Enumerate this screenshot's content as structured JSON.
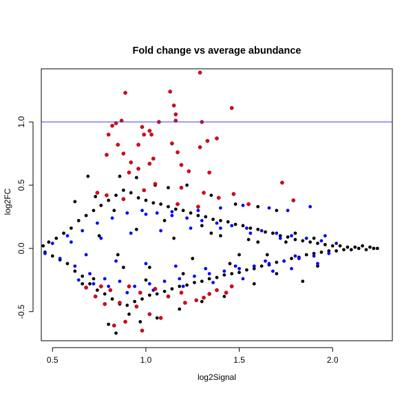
{
  "chart_data": {
    "type": "scatter",
    "title": "Fold change vs average abundance",
    "xlabel": "log2Signal",
    "ylabel": "log2FC",
    "xlim": [
      0.44,
      2.32
    ],
    "ylim": [
      -0.73,
      1.42
    ],
    "x_ticks": [
      0.5,
      1.0,
      1.5,
      2.0
    ],
    "x_tick_labels": [
      "0.5",
      "1.0",
      "1.5",
      "2.0"
    ],
    "y_ticks": [
      -0.5,
      0.0,
      0.5,
      1.0
    ],
    "y_tick_labels": [
      "-0.5",
      "0.0",
      "0.5",
      "1.0"
    ],
    "reference_line": {
      "y": 1.0,
      "color": "#3b3bff"
    },
    "colors": {
      "black_group": "#000000",
      "blue_group": "#0000ff",
      "red_group": "#e0001b",
      "red_outline": "#7a0000"
    },
    "series": [
      {
        "color_key": "black_group",
        "points": [
          [
            0.45,
            0.02
          ],
          [
            0.46,
            -0.03
          ],
          [
            0.48,
            0.05
          ],
          [
            0.5,
            -0.06
          ],
          [
            0.52,
            0.08
          ],
          [
            0.54,
            -0.09
          ],
          [
            0.56,
            0.12
          ],
          [
            0.58,
            -0.12
          ],
          [
            0.6,
            0.16
          ],
          [
            0.62,
            -0.18
          ],
          [
            0.64,
            0.22
          ],
          [
            0.66,
            -0.22
          ],
          [
            0.68,
            0.26
          ],
          [
            0.7,
            -0.28
          ],
          [
            0.72,
            0.3
          ],
          [
            0.74,
            -0.33
          ],
          [
            0.76,
            0.34
          ],
          [
            0.78,
            -0.36
          ],
          [
            0.8,
            0.38
          ],
          [
            0.82,
            -0.4
          ],
          [
            0.84,
            0.42
          ],
          [
            0.86,
            -0.44
          ],
          [
            0.88,
            0.46
          ],
          [
            0.9,
            -0.45
          ],
          [
            0.92,
            0.44
          ],
          [
            0.94,
            -0.42
          ],
          [
            0.96,
            0.4
          ],
          [
            0.98,
            -0.4
          ],
          [
            1.0,
            0.38
          ],
          [
            1.02,
            -0.37
          ],
          [
            1.04,
            0.36
          ],
          [
            1.06,
            -0.36
          ],
          [
            1.08,
            0.35
          ],
          [
            1.1,
            -0.34
          ],
          [
            1.12,
            0.33
          ],
          [
            1.14,
            -0.32
          ],
          [
            1.16,
            0.31
          ],
          [
            1.18,
            -0.3
          ],
          [
            1.2,
            0.3
          ],
          [
            1.22,
            -0.29
          ],
          [
            1.24,
            0.28
          ],
          [
            1.26,
            -0.27
          ],
          [
            1.28,
            0.26
          ],
          [
            1.3,
            -0.26
          ],
          [
            1.32,
            0.25
          ],
          [
            1.34,
            -0.24
          ],
          [
            1.36,
            0.23
          ],
          [
            1.38,
            -0.23
          ],
          [
            1.4,
            0.22
          ],
          [
            1.42,
            -0.21
          ],
          [
            1.44,
            0.21
          ],
          [
            1.46,
            -0.2
          ],
          [
            1.48,
            0.19
          ],
          [
            1.5,
            -0.19
          ],
          [
            1.52,
            0.18
          ],
          [
            1.54,
            -0.17
          ],
          [
            1.56,
            0.16
          ],
          [
            1.58,
            -0.16
          ],
          [
            1.6,
            0.15
          ],
          [
            1.62,
            -0.14
          ],
          [
            1.64,
            0.13
          ],
          [
            1.66,
            -0.13
          ],
          [
            1.68,
            0.12
          ],
          [
            1.7,
            -0.11
          ],
          [
            1.72,
            0.1
          ],
          [
            1.74,
            -0.1
          ],
          [
            1.76,
            0.09
          ],
          [
            1.78,
            -0.08
          ],
          [
            1.8,
            0.07
          ],
          [
            1.82,
            -0.07
          ],
          [
            1.84,
            0.06
          ],
          [
            1.86,
            -0.05
          ],
          [
            1.88,
            0.05
          ],
          [
            1.9,
            -0.04
          ],
          [
            1.92,
            0.04
          ],
          [
            1.94,
            -0.03
          ],
          [
            1.96,
            0.03
          ],
          [
            1.98,
            -0.02
          ],
          [
            2.0,
            0.02
          ],
          [
            2.02,
            -0.02
          ],
          [
            2.04,
            0.02
          ],
          [
            2.06,
            -0.01
          ],
          [
            2.08,
            0.01
          ],
          [
            2.1,
            -0.01
          ],
          [
            2.12,
            0.01
          ],
          [
            2.14,
            0.0
          ],
          [
            2.16,
            0.02
          ],
          [
            2.18,
            -0.01
          ],
          [
            2.2,
            0.01
          ],
          [
            2.22,
            0.0
          ],
          [
            2.24,
            0.0
          ],
          [
            0.69,
            0.57
          ],
          [
            0.73,
            0.41
          ],
          [
            0.83,
            0.3
          ],
          [
            0.86,
            0.57
          ],
          [
            0.95,
            0.56
          ],
          [
            1.05,
            0.5
          ],
          [
            1.12,
            0.48
          ],
          [
            1.22,
            0.5
          ],
          [
            1.35,
            0.42
          ],
          [
            1.48,
            0.35
          ],
          [
            1.6,
            0.33
          ],
          [
            1.7,
            0.3
          ],
          [
            0.62,
            0.37
          ],
          [
            0.75,
            0.1
          ],
          [
            0.85,
            -0.05
          ],
          [
            0.95,
            0.15
          ],
          [
            1.02,
            -0.15
          ],
          [
            1.15,
            0.08
          ],
          [
            1.25,
            -0.08
          ],
          [
            1.35,
            0.12
          ],
          [
            1.45,
            -0.12
          ],
          [
            1.55,
            0.07
          ],
          [
            1.65,
            -0.05
          ],
          [
            1.75,
            0.05
          ],
          [
            0.8,
            -0.6
          ],
          [
            0.84,
            -0.67
          ],
          [
            0.91,
            -0.52
          ],
          [
            0.97,
            -0.58
          ],
          [
            1.06,
            -0.55
          ],
          [
            1.18,
            -0.48
          ],
          [
            1.3,
            -0.42
          ],
          [
            1.42,
            -0.38
          ],
          [
            1.58,
            -0.28
          ],
          [
            1.7,
            -0.2
          ],
          [
            1.84,
            -0.26
          ],
          [
            1.92,
            -0.14
          ],
          [
            0.66,
            -0.28
          ],
          [
            0.72,
            -0.24
          ],
          [
            0.88,
            -0.15
          ],
          [
            1.0,
            -0.25
          ],
          [
            1.1,
            0.22
          ],
          [
            1.2,
            -0.2
          ],
          [
            1.3,
            0.18
          ],
          [
            1.4,
            0.1
          ],
          [
            1.5,
            -0.05
          ],
          [
            1.6,
            0.05
          ],
          [
            1.8,
            0.12
          ],
          [
            1.9,
            0.08
          ]
        ]
      },
      {
        "color_key": "blue_group",
        "points": [
          [
            0.46,
            -0.04
          ],
          [
            0.5,
            0.04
          ],
          [
            0.54,
            -0.08
          ],
          [
            0.58,
            0.1
          ],
          [
            0.62,
            -0.14
          ],
          [
            0.66,
            0.14
          ],
          [
            0.7,
            -0.2
          ],
          [
            0.74,
            0.2
          ],
          [
            0.78,
            -0.24
          ],
          [
            0.82,
            0.24
          ],
          [
            0.86,
            -0.26
          ],
          [
            0.9,
            0.28
          ],
          [
            0.94,
            -0.3
          ],
          [
            0.98,
            0.3
          ],
          [
            1.02,
            -0.28
          ],
          [
            1.06,
            0.28
          ],
          [
            1.1,
            -0.26
          ],
          [
            1.14,
            0.26
          ],
          [
            1.18,
            -0.24
          ],
          [
            1.22,
            0.24
          ],
          [
            1.26,
            -0.22
          ],
          [
            1.3,
            0.22
          ],
          [
            1.34,
            -0.2
          ],
          [
            1.38,
            0.2
          ],
          [
            1.42,
            -0.18
          ],
          [
            1.46,
            0.18
          ],
          [
            1.5,
            -0.16
          ],
          [
            1.54,
            0.16
          ],
          [
            1.58,
            -0.14
          ],
          [
            1.62,
            0.14
          ],
          [
            1.66,
            -0.12
          ],
          [
            1.7,
            0.12
          ],
          [
            1.74,
            -0.1
          ],
          [
            1.78,
            0.1
          ],
          [
            1.82,
            -0.08
          ],
          [
            1.86,
            0.08
          ],
          [
            1.9,
            -0.06
          ],
          [
            1.94,
            0.06
          ],
          [
            1.98,
            -0.04
          ],
          [
            2.02,
            0.04
          ],
          [
            0.6,
            0.05
          ],
          [
            0.68,
            -0.05
          ],
          [
            0.76,
            0.08
          ],
          [
            0.84,
            -0.1
          ],
          [
            0.92,
            0.12
          ],
          [
            1.0,
            -0.12
          ],
          [
            1.08,
            0.14
          ],
          [
            1.16,
            -0.14
          ],
          [
            1.24,
            0.16
          ],
          [
            1.32,
            -0.16
          ],
          [
            1.4,
            0.16
          ],
          [
            1.48,
            -0.14
          ],
          [
            1.56,
            0.12
          ],
          [
            1.64,
            -0.1
          ],
          [
            1.72,
            0.08
          ],
          [
            1.8,
            -0.06
          ],
          [
            1.88,
            0.33
          ],
          [
            1.76,
            0.3
          ],
          [
            1.66,
            0.32
          ],
          [
            1.52,
            0.34
          ],
          [
            1.4,
            0.32
          ],
          [
            1.28,
            0.3
          ],
          [
            1.14,
            0.29
          ],
          [
            1.0,
            0.27
          ],
          [
            0.64,
            -0.25
          ],
          [
            0.72,
            -0.28
          ],
          [
            0.8,
            -0.3
          ],
          [
            0.9,
            -0.35
          ],
          [
            1.04,
            -0.33
          ],
          [
            1.2,
            -0.3
          ],
          [
            1.36,
            -0.27
          ],
          [
            1.52,
            -0.24
          ],
          [
            1.68,
            -0.18
          ],
          [
            1.78,
            -0.16
          ],
          [
            1.92,
            -0.12
          ],
          [
            1.96,
            0.1
          ]
        ]
      },
      {
        "color_key": "red_group",
        "points": [
          [
            1.29,
            1.39
          ],
          [
            1.13,
            1.24
          ],
          [
            0.89,
            1.23
          ],
          [
            1.15,
            1.13
          ],
          [
            1.46,
            1.11
          ],
          [
            1.16,
            1.06
          ],
          [
            1.16,
            1.01
          ],
          [
            1.07,
            1.0
          ],
          [
            1.3,
            1.0
          ],
          [
            0.84,
            0.99
          ],
          [
            0.87,
            1.01
          ],
          [
            0.82,
            0.97
          ],
          [
            0.98,
            0.96
          ],
          [
            1.02,
            0.93
          ],
          [
            0.8,
            0.9
          ],
          [
            0.99,
            0.9
          ],
          [
            1.03,
            0.9
          ],
          [
            1.38,
            0.87
          ],
          [
            1.33,
            0.85
          ],
          [
            0.96,
            0.82
          ],
          [
            0.85,
            0.82
          ],
          [
            1.14,
            0.83
          ],
          [
            1.29,
            0.8
          ],
          [
            0.88,
            0.75
          ],
          [
            0.79,
            0.74
          ],
          [
            1.17,
            0.76
          ],
          [
            1.04,
            0.71
          ],
          [
            0.92,
            0.68
          ],
          [
            1.02,
            0.67
          ],
          [
            1.19,
            0.66
          ],
          [
            0.96,
            0.63
          ],
          [
            0.91,
            0.6
          ],
          [
            1.23,
            0.61
          ],
          [
            1.34,
            0.6
          ],
          [
            1.73,
            0.52
          ],
          [
            1.05,
            0.51
          ],
          [
            1.19,
            0.48
          ],
          [
            0.99,
            0.46
          ],
          [
            1.31,
            0.44
          ],
          [
            1.47,
            0.43
          ],
          [
            1.39,
            0.4
          ],
          [
            0.74,
            0.44
          ],
          [
            0.79,
            0.42
          ],
          [
            0.88,
            0.39
          ],
          [
            1.17,
            0.35
          ],
          [
            1.55,
            0.35
          ],
          [
            1.79,
            0.38
          ],
          [
            1.28,
            0.33
          ],
          [
            0.76,
            -0.3
          ],
          [
            0.81,
            -0.33
          ],
          [
            0.91,
            -0.3
          ],
          [
            0.97,
            -0.35
          ],
          [
            1.05,
            -0.32
          ],
          [
            1.12,
            -0.38
          ],
          [
            1.19,
            -0.35
          ],
          [
            1.27,
            -0.41
          ],
          [
            1.34,
            -0.36
          ],
          [
            0.78,
            -0.44
          ],
          [
            0.86,
            -0.43
          ],
          [
            0.95,
            -0.46
          ],
          [
            1.02,
            -0.52
          ],
          [
            1.08,
            -0.55
          ],
          [
            0.89,
            -0.58
          ],
          [
            0.83,
            -0.61
          ],
          [
            0.98,
            -0.65
          ],
          [
            1.21,
            -0.43
          ],
          [
            1.31,
            -0.39
          ],
          [
            1.38,
            -0.33
          ],
          [
            0.73,
            -0.38
          ],
          [
            0.68,
            -0.31
          ],
          [
            1.46,
            -0.3
          ],
          [
            1.43,
            -0.35
          ]
        ]
      }
    ]
  }
}
